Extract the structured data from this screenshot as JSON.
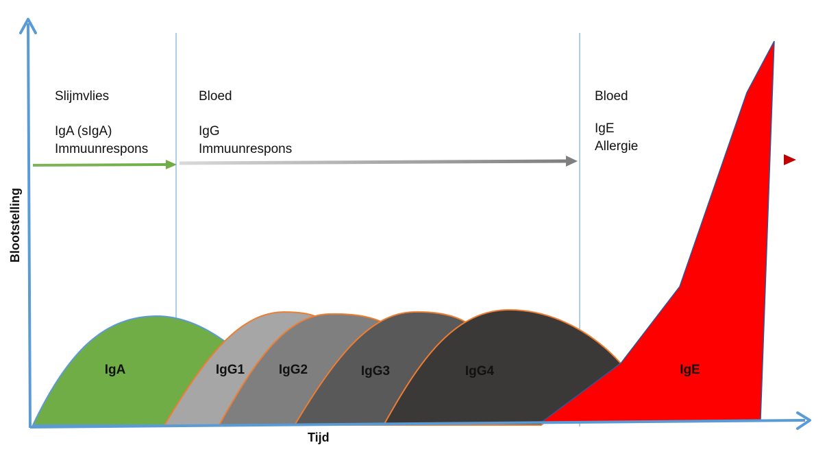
{
  "axes": {
    "x_label": "Tijd",
    "y_label": "Blootstelling"
  },
  "phases": [
    {
      "location": "Slijmvlies",
      "line1": "IgA (sIgA)",
      "line2": "Immuunrespons",
      "arrow_color": "#70ad47"
    },
    {
      "location": "Bloed",
      "line1": "IgG",
      "line2": "Immuunrespons",
      "arrow_color": "#7f7f7f"
    },
    {
      "location": "Bloed",
      "line1": "IgE",
      "line2": "Allergie",
      "arrow_color": "#c00000"
    }
  ],
  "curves": [
    {
      "label": "IgA",
      "color": "#70ad47",
      "label_color": "#111111"
    },
    {
      "label": "IgG1",
      "color": "#a6a6a6",
      "label_color": "#111111"
    },
    {
      "label": "IgG2",
      "color": "#7f7f7f",
      "label_color": "#111111"
    },
    {
      "label": "IgG3",
      "color": "#595959",
      "label_color": "#111111"
    },
    {
      "label": "IgG4",
      "color": "#3b3838",
      "label_color": "#111111"
    },
    {
      "label": "IgE",
      "color": "#ff0000",
      "label_color": "#111111"
    }
  ],
  "colors": {
    "axis": "#5b9bd5",
    "curve_outline": "#ed7d31",
    "divider": "#5b9bd5"
  }
}
